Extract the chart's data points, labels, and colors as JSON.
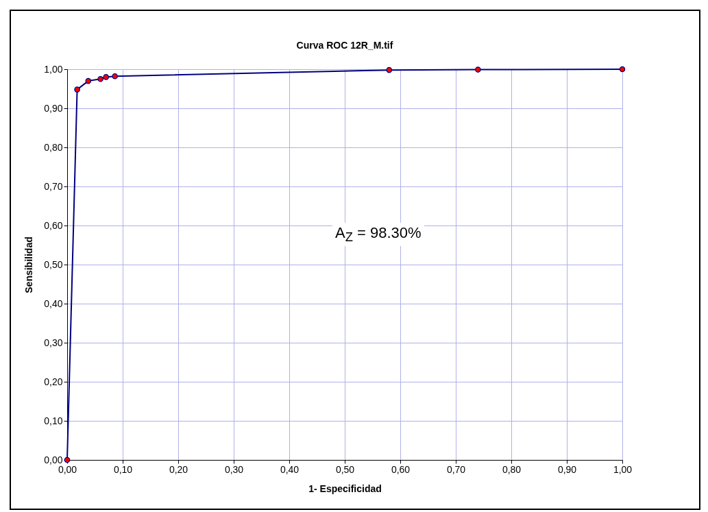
{
  "chart_data": {
    "type": "line",
    "title": "Curva ROC 12R_M.tif",
    "xlabel": "1- Especificidad",
    "ylabel": "Sensibilidad",
    "annotations": [
      "A$_{Z}$ = 98.30%"
    ],
    "x": [
      0,
      0.018,
      0.038,
      0.06,
      0.07,
      0.086,
      0.58,
      0.74,
      1.0
    ],
    "series": [
      {
        "color": "#000080",
        "values": [
          0,
          0.948,
          0.97,
          0.975,
          0.98,
          0.982,
          0.998,
          0.999,
          1.0
        ]
      }
    ],
    "xlim": [
      0,
      1
    ],
    "ylim": [
      0,
      1
    ],
    "xticks": [
      {
        "value": 0,
        "label": "0,00"
      },
      {
        "value": 0.1,
        "label": "0,10"
      },
      {
        "value": 0.2,
        "label": "0,20"
      },
      {
        "value": 0.3,
        "label": "0,30"
      },
      {
        "value": 0.4,
        "label": "0,40"
      },
      {
        "value": 0.5,
        "label": "0,50"
      },
      {
        "value": 0.6,
        "label": "0,60"
      },
      {
        "value": 0.7,
        "label": "0,70"
      },
      {
        "value": 0.8,
        "label": "0,80"
      },
      {
        "value": 0.9,
        "label": "0,90"
      },
      {
        "value": 1,
        "label": "1,00"
      }
    ],
    "yticks": [
      {
        "value": 0,
        "label": "0,00"
      },
      {
        "value": 0.1,
        "label": "0,10"
      },
      {
        "value": 0.2,
        "label": "0,20"
      },
      {
        "value": 0.3,
        "label": "0,30"
      },
      {
        "value": 0.4,
        "label": "0,40"
      },
      {
        "value": 0.5,
        "label": "0,50"
      },
      {
        "value": 0.6,
        "label": "0,60"
      },
      {
        "value": 0.7,
        "label": "0,70"
      },
      {
        "value": 0.8,
        "label": "0,80"
      },
      {
        "value": 0.9,
        "label": "0,90"
      },
      {
        "value": 1,
        "label": "1,00"
      }
    ],
    "grid": true,
    "marker": "circle",
    "line_style": "solid"
  }
}
